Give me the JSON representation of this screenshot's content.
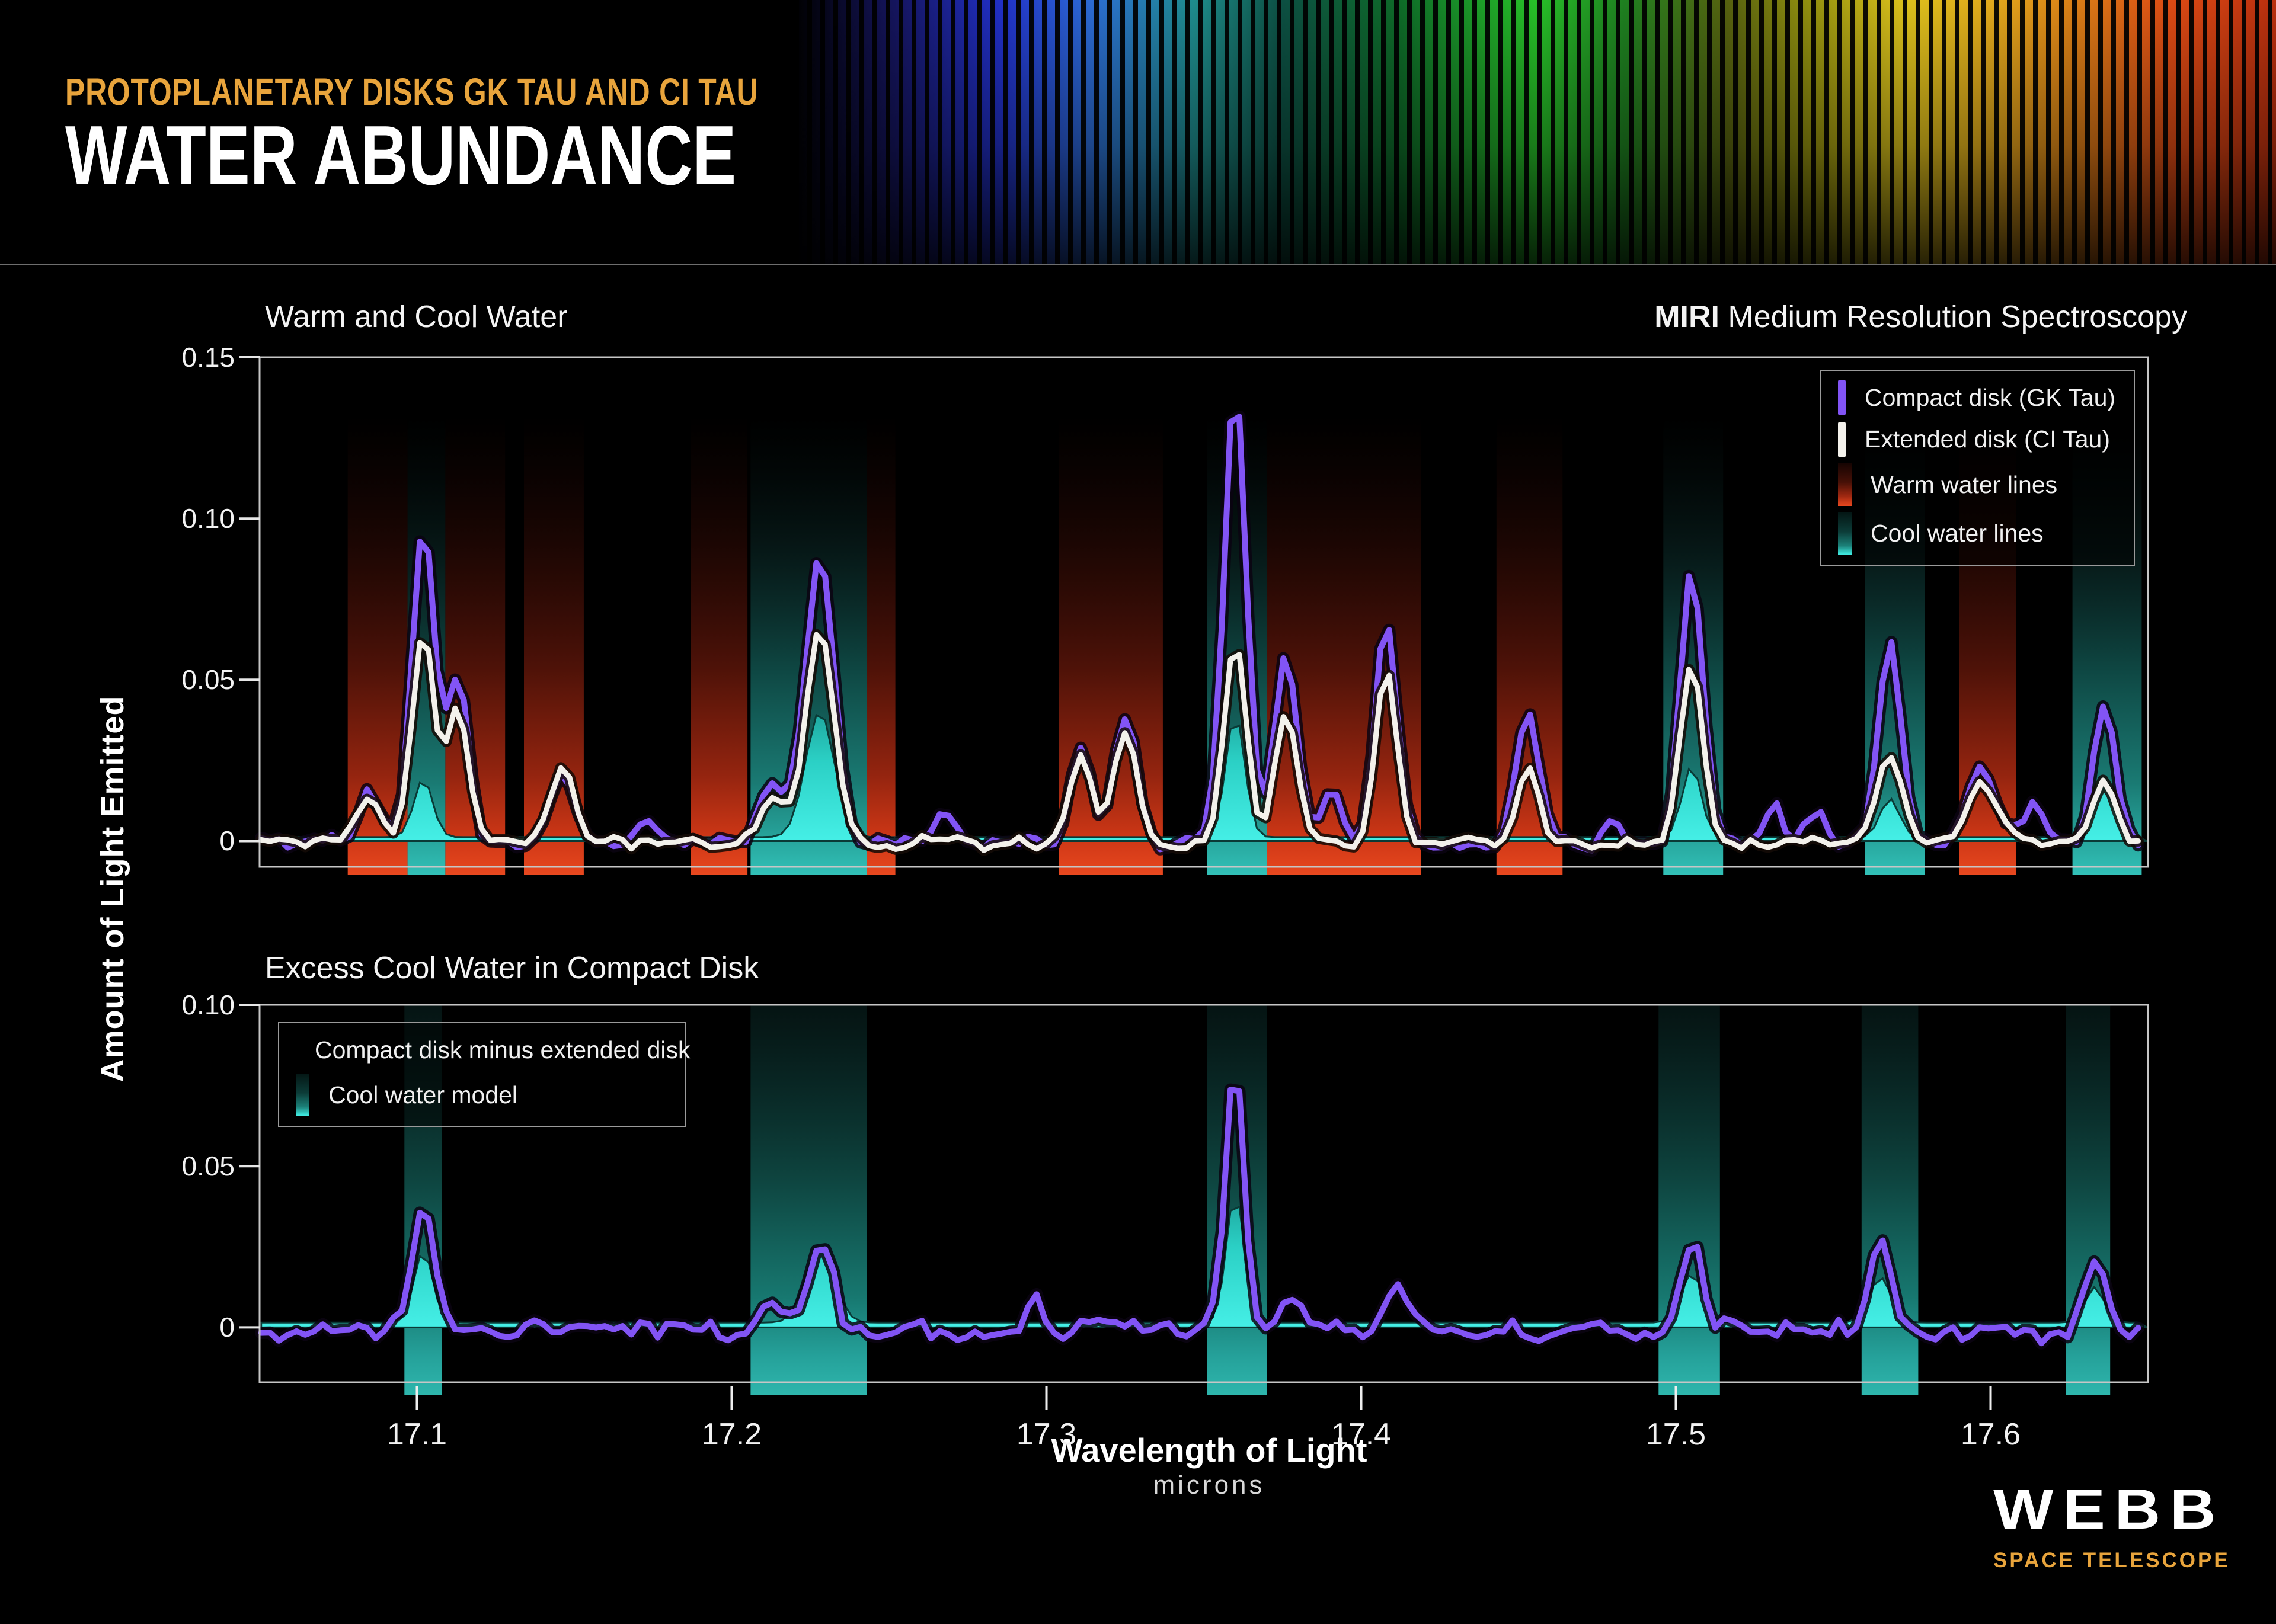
{
  "header": {
    "kicker": "PROTOPLANETARY DISKS GK TAU AND CI TAU",
    "title": "WATER ABUNDANCE"
  },
  "instrument": {
    "bold": "MIRI",
    "rest": " Medium Resolution Spectroscopy"
  },
  "axes": {
    "y": "Amount of Light Emitted",
    "x": "Wavelength of Light",
    "x_unit": "microns"
  },
  "legends": {
    "top": [
      {
        "label": "Compact disk (GK Tau)",
        "swatch": "purple-line"
      },
      {
        "label": "Extended disk (CI Tau)",
        "swatch": "white-line"
      },
      {
        "label": "Warm water lines",
        "swatch": "warm-gradient"
      },
      {
        "label": "Cool water lines",
        "swatch": "cool-gradient"
      }
    ],
    "bottom": [
      {
        "label": "Compact disk minus extended disk",
        "swatch": "purple-line"
      },
      {
        "label": "Cool water model",
        "swatch": "cool-gradient"
      }
    ]
  },
  "footer": {
    "logo": "WEBB",
    "tagline": "SPACE TELESCOPE"
  },
  "colors": {
    "background": "#000000",
    "gold": "#E8A43C",
    "purple": "#8254F5",
    "white_line": "#F3F1EB",
    "warm_red": "#E8481F",
    "cool_teal": "#2FBFB6",
    "cyan_bright": "#45EFE6",
    "frame_gray": "#C6C6C6"
  },
  "chart_data": [
    {
      "id": "warm-cool",
      "type": "line",
      "title": "Warm and Cool Water",
      "xlabel": "Wavelength of Light (microns)",
      "ylabel": "Amount of Light Emitted",
      "x_range": [
        17.05,
        17.65
      ],
      "ylim": [
        -0.008,
        0.15
      ],
      "grid": false,
      "legend_position": "upper right",
      "y_ticks": [
        {
          "v": 0,
          "label": "0"
        },
        {
          "v": 0.05,
          "label": "0.05"
        },
        {
          "v": 0.1,
          "label": "0.10"
        },
        {
          "v": 0.15,
          "label": "0.15"
        }
      ],
      "x_ticks": [],
      "band_fade_top": 0.132,
      "warm_bands": [
        [
          17.078,
          17.097
        ],
        [
          17.109,
          17.128
        ],
        [
          17.134,
          17.153
        ],
        [
          17.187,
          17.205
        ],
        [
          17.243,
          17.252
        ],
        [
          17.304,
          17.337
        ],
        [
          17.37,
          17.419
        ],
        [
          17.443,
          17.464
        ],
        [
          17.59,
          17.608
        ]
      ],
      "cool_bands": [
        [
          17.097,
          17.109
        ],
        [
          17.206,
          17.243
        ],
        [
          17.351,
          17.37
        ],
        [
          17.496,
          17.515
        ],
        [
          17.56,
          17.579
        ],
        [
          17.626,
          17.648
        ]
      ],
      "series": [
        {
          "name": "Compact disk (GK Tau)",
          "role": "compact",
          "noise": 0.0035,
          "seed": 1,
          "peaks": [
            [
              17.085,
              0.015,
              0.004
            ],
            [
              17.102,
              0.1,
              0.0035
            ],
            [
              17.113,
              0.051,
              0.0035
            ],
            [
              17.146,
              0.022,
              0.004
            ],
            [
              17.172,
              0.008,
              0.003
            ],
            [
              17.213,
              0.02,
              0.004
            ],
            [
              17.228,
              0.09,
              0.0045
            ],
            [
              17.268,
              0.008,
              0.003
            ],
            [
              17.311,
              0.03,
              0.0035
            ],
            [
              17.325,
              0.04,
              0.0035
            ],
            [
              17.36,
              0.141,
              0.0035
            ],
            [
              17.376,
              0.059,
              0.0035
            ],
            [
              17.391,
              0.016,
              0.003
            ],
            [
              17.408,
              0.069,
              0.0035
            ],
            [
              17.453,
              0.041,
              0.0035
            ],
            [
              17.48,
              0.008,
              0.003
            ],
            [
              17.505,
              0.085,
              0.0035
            ],
            [
              17.531,
              0.012,
              0.003
            ],
            [
              17.545,
              0.012,
              0.003
            ],
            [
              17.568,
              0.06,
              0.0035
            ],
            [
              17.597,
              0.022,
              0.005
            ],
            [
              17.614,
              0.012,
              0.003
            ],
            [
              17.636,
              0.044,
              0.0035
            ]
          ]
        },
        {
          "name": "Extended disk (CI Tau)",
          "role": "extended",
          "noise": 0.0025,
          "seed": 2,
          "peaks": [
            [
              17.085,
              0.013,
              0.004
            ],
            [
              17.102,
              0.064,
              0.0035
            ],
            [
              17.113,
              0.042,
              0.0035
            ],
            [
              17.146,
              0.023,
              0.004
            ],
            [
              17.213,
              0.015,
              0.004
            ],
            [
              17.228,
              0.067,
              0.0045
            ],
            [
              17.311,
              0.027,
              0.0035
            ],
            [
              17.325,
              0.036,
              0.0035
            ],
            [
              17.36,
              0.063,
              0.0035
            ],
            [
              17.376,
              0.041,
              0.0035
            ],
            [
              17.408,
              0.053,
              0.0035
            ],
            [
              17.453,
              0.024,
              0.0035
            ],
            [
              17.505,
              0.056,
              0.0035
            ],
            [
              17.568,
              0.027,
              0.004
            ],
            [
              17.597,
              0.018,
              0.005
            ],
            [
              17.636,
              0.019,
              0.0035
            ]
          ]
        },
        {
          "name": "Cool water model",
          "role": "model",
          "noise": 0,
          "seed": 0,
          "baseline": 0.0012,
          "peaks": [
            [
              17.102,
              0.018,
              0.003
            ],
            [
              17.228,
              0.039,
              0.0045
            ],
            [
              17.36,
              0.038,
              0.003
            ],
            [
              17.505,
              0.022,
              0.003
            ],
            [
              17.568,
              0.012,
              0.003
            ],
            [
              17.636,
              0.017,
              0.003
            ]
          ]
        }
      ]
    },
    {
      "id": "excess",
      "type": "line",
      "title": "Excess Cool Water in Compact Disk",
      "xlabel": "Wavelength of Light (microns)",
      "ylabel": "Amount of Light Emitted",
      "x_range": [
        17.05,
        17.65
      ],
      "ylim": [
        -0.017,
        0.1
      ],
      "grid": false,
      "legend_position": "upper left",
      "y_ticks": [
        {
          "v": 0,
          "label": "0"
        },
        {
          "v": 0.05,
          "label": "0.05"
        },
        {
          "v": 0.1,
          "label": "0.10"
        }
      ],
      "x_ticks": [
        {
          "v": 17.1,
          "label": "17.1"
        },
        {
          "v": 17.2,
          "label": "17.2"
        },
        {
          "v": 17.3,
          "label": "17.3"
        },
        {
          "v": 17.4,
          "label": "17.4"
        },
        {
          "v": 17.5,
          "label": "17.5"
        },
        {
          "v": 17.6,
          "label": "17.6"
        }
      ],
      "band_fade_top": 0.1,
      "warm_bands": [],
      "cool_bands": [
        [
          17.096,
          17.108
        ],
        [
          17.206,
          17.243
        ],
        [
          17.351,
          17.37
        ],
        [
          17.4945,
          17.514
        ],
        [
          17.559,
          17.577
        ],
        [
          17.624,
          17.638
        ]
      ],
      "series": [
        {
          "name": "Compact disk minus extended disk",
          "role": "compact",
          "noise": 0.0045,
          "seed": 3,
          "peaks": [
            [
              17.102,
              0.039,
              0.0035
            ],
            [
              17.213,
              0.01,
              0.004
            ],
            [
              17.228,
              0.028,
              0.004
            ],
            [
              17.297,
              0.01,
              0.003
            ],
            [
              17.36,
              0.082,
              0.003
            ],
            [
              17.378,
              0.01,
              0.003
            ],
            [
              17.412,
              0.014,
              0.004
            ],
            [
              17.505,
              0.029,
              0.0035
            ],
            [
              17.565,
              0.029,
              0.0035
            ],
            [
              17.633,
              0.023,
              0.003
            ]
          ]
        },
        {
          "name": "Cool water model",
          "role": "model",
          "noise": 0,
          "seed": 0,
          "baseline": 0.0015,
          "peaks": [
            [
              17.102,
              0.022,
              0.003
            ],
            [
              17.228,
              0.024,
              0.0045
            ],
            [
              17.36,
              0.04,
              0.0028
            ],
            [
              17.505,
              0.015,
              0.0035
            ],
            [
              17.565,
              0.014,
              0.0035
            ],
            [
              17.633,
              0.011,
              0.003
            ]
          ]
        }
      ]
    }
  ]
}
